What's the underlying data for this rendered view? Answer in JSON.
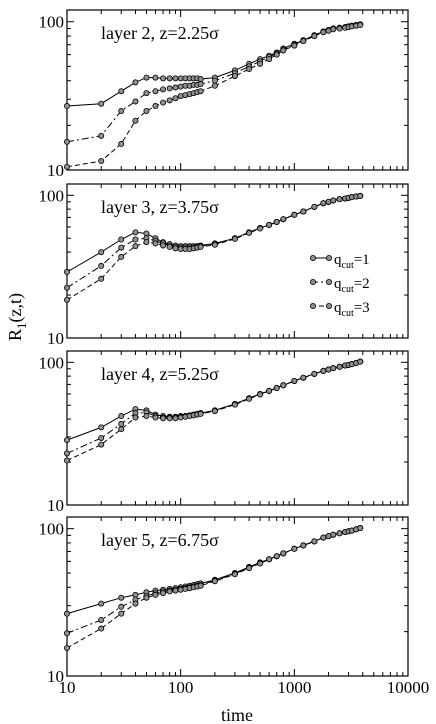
{
  "figure": {
    "ylabel_main": "R",
    "ylabel_sub": "1",
    "ylabel_tail": "(z,t)",
    "xlabel": "time"
  },
  "legend": {
    "entries": [
      {
        "main": "q",
        "sub": "cut",
        "tail": "=1",
        "style": "solid"
      },
      {
        "main": "q",
        "sub": "cut",
        "tail": "=2",
        "style": "dashdot"
      },
      {
        "main": "q",
        "sub": "cut",
        "tail": "=3",
        "style": "dashed"
      }
    ]
  },
  "chart_data": [
    {
      "type": "line",
      "title": "layer 2, z=2.25σ",
      "xscale": "log",
      "yscale": "log",
      "xlim": [
        10,
        10000
      ],
      "ylim": [
        10,
        120
      ],
      "x_ticks": [
        "10",
        "100",
        "1000",
        "10000"
      ],
      "y_ticks": [
        "10",
        "100"
      ],
      "series": [
        {
          "name": "qcut=1",
          "line": "solid",
          "x": [
            10,
            20,
            30,
            40,
            50,
            60,
            70,
            80,
            90,
            100,
            110,
            120,
            130,
            140,
            150,
            200,
            300,
            400,
            500,
            600,
            700,
            800,
            1000,
            1200,
            1500,
            1800,
            2000,
            2200,
            2500,
            2800,
            3000,
            3200,
            3500,
            3800
          ],
          "y": [
            27,
            28,
            34,
            39,
            42,
            42,
            41.5,
            41.5,
            41.5,
            41.5,
            41.5,
            41.5,
            41.5,
            41.5,
            41,
            42,
            47,
            52,
            56,
            59,
            62,
            66,
            71,
            75,
            81,
            86,
            88,
            90,
            91,
            92,
            93,
            94,
            95,
            96
          ]
        },
        {
          "name": "qcut=2",
          "line": "dashdot",
          "x": [
            10,
            20,
            30,
            40,
            50,
            60,
            70,
            80,
            90,
            100,
            110,
            120,
            130,
            140,
            150,
            200,
            300,
            400,
            500,
            600,
            700,
            800,
            1000,
            1200,
            1500,
            1800,
            2000,
            2200,
            2500,
            2800,
            3000,
            3200,
            3500,
            3800
          ],
          "y": [
            15.5,
            17,
            25,
            29,
            33,
            34,
            35,
            35.5,
            36,
            36.5,
            37,
            37,
            37.5,
            37.5,
            38,
            40,
            45,
            50,
            54,
            58,
            61,
            65,
            70,
            75,
            81,
            86,
            88,
            90,
            91,
            92,
            93,
            94,
            95,
            96
          ]
        },
        {
          "name": "qcut=3",
          "line": "dashed",
          "x": [
            10,
            20,
            30,
            40,
            50,
            60,
            70,
            80,
            90,
            100,
            110,
            120,
            130,
            140,
            150,
            200,
            300,
            400,
            500,
            600,
            700,
            800,
            1000,
            1200,
            1500,
            1800,
            2000,
            2200,
            2500,
            2800,
            3000,
            3200,
            3500,
            3800
          ],
          "y": [
            10.5,
            11.5,
            15,
            21.5,
            25,
            27,
            28.5,
            29.5,
            30.5,
            31.5,
            32,
            32.5,
            33,
            33.5,
            34,
            37,
            43,
            48,
            52,
            56,
            60,
            64,
            69,
            74,
            80,
            85,
            87,
            89,
            90,
            91,
            92,
            93,
            94,
            95
          ]
        }
      ]
    },
    {
      "type": "line",
      "title": "layer 3, z=3.75σ",
      "xscale": "log",
      "yscale": "log",
      "xlim": [
        10,
        10000
      ],
      "ylim": [
        10,
        120
      ],
      "x_ticks": [
        "10",
        "100",
        "1000",
        "10000"
      ],
      "y_ticks": [
        "10",
        "100"
      ],
      "series": [
        {
          "name": "qcut=1",
          "line": "solid",
          "x": [
            10,
            20,
            30,
            40,
            50,
            60,
            70,
            80,
            90,
            100,
            110,
            120,
            130,
            140,
            150,
            200,
            300,
            400,
            500,
            600,
            700,
            800,
            1000,
            1200,
            1500,
            1800,
            2000,
            2200,
            2500,
            2800,
            3000,
            3200,
            3500,
            3800
          ],
          "y": [
            29,
            40,
            49,
            55,
            54,
            50,
            47,
            45.5,
            44.5,
            44,
            44,
            44,
            44,
            44,
            44.5,
            46,
            50,
            55,
            59,
            62,
            65,
            68,
            73,
            77,
            83,
            88,
            90,
            92,
            94,
            95,
            96,
            97,
            98,
            99
          ]
        },
        {
          "name": "qcut=2",
          "line": "dashdot",
          "x": [
            10,
            20,
            30,
            40,
            50,
            60,
            70,
            80,
            90,
            100,
            110,
            120,
            130,
            140,
            150,
            200,
            300,
            400,
            500,
            600,
            700,
            800,
            1000,
            1200,
            1500,
            1800,
            2000,
            2200,
            2500,
            2800,
            3000,
            3200,
            3500,
            3800
          ],
          "y": [
            22.5,
            32,
            43,
            49,
            50,
            48,
            46,
            44.5,
            43.5,
            43,
            43,
            43,
            43,
            43.5,
            44,
            45.5,
            50,
            55,
            59,
            62,
            65,
            68,
            73,
            77,
            83,
            88,
            90,
            92,
            94,
            95,
            96,
            97,
            98,
            99
          ]
        },
        {
          "name": "qcut=3",
          "line": "dashed",
          "x": [
            10,
            20,
            30,
            40,
            50,
            60,
            70,
            80,
            90,
            100,
            110,
            120,
            130,
            140,
            150,
            200,
            300,
            400,
            500,
            600,
            700,
            800,
            1000,
            1200,
            1500,
            1800,
            2000,
            2200,
            2500,
            2800,
            3000,
            3200,
            3500,
            3800
          ],
          "y": [
            18.5,
            26,
            37,
            44,
            47,
            46,
            44.5,
            43.5,
            42.5,
            42,
            42,
            42,
            42.5,
            43,
            43.5,
            45,
            49.5,
            54.5,
            58.5,
            62,
            65,
            68,
            73,
            77,
            83,
            88,
            90,
            92,
            94,
            95,
            96,
            97,
            98,
            99
          ]
        }
      ]
    },
    {
      "type": "line",
      "title": "layer 4, z=5.25σ",
      "xscale": "log",
      "yscale": "log",
      "xlim": [
        10,
        10000
      ],
      "ylim": [
        10,
        120
      ],
      "x_ticks": [
        "10",
        "100",
        "1000",
        "10000"
      ],
      "y_ticks": [
        "10",
        "100"
      ],
      "series": [
        {
          "name": "qcut=1",
          "line": "solid",
          "x": [
            10,
            20,
            30,
            40,
            50,
            60,
            70,
            80,
            90,
            100,
            110,
            120,
            130,
            140,
            150,
            200,
            300,
            400,
            500,
            600,
            700,
            800,
            1000,
            1200,
            1500,
            1800,
            2000,
            2200,
            2500,
            2800,
            3000,
            3200,
            3500,
            3800
          ],
          "y": [
            28.5,
            35,
            42,
            47,
            46,
            43,
            42,
            41.5,
            41.5,
            42,
            42,
            42.5,
            43,
            43.5,
            44,
            46,
            51,
            56,
            60,
            63,
            66,
            69,
            74,
            78,
            83,
            87,
            89,
            91,
            93,
            95,
            96,
            97,
            99,
            101
          ]
        },
        {
          "name": "qcut=2",
          "line": "dashdot",
          "x": [
            10,
            20,
            30,
            40,
            50,
            60,
            70,
            80,
            90,
            100,
            110,
            120,
            130,
            140,
            150,
            200,
            300,
            400,
            500,
            600,
            700,
            800,
            1000,
            1200,
            1500,
            1800,
            2000,
            2200,
            2500,
            2800,
            3000,
            3200,
            3500,
            3800
          ],
          "y": [
            23,
            29.5,
            37,
            44,
            44.5,
            42,
            41,
            41,
            41,
            41.5,
            42,
            42.5,
            43,
            43.5,
            44,
            46,
            51,
            56,
            60,
            63,
            66,
            69,
            74,
            78,
            83,
            87,
            89,
            91,
            93,
            95,
            96,
            97,
            99,
            101
          ]
        },
        {
          "name": "qcut=3",
          "line": "dashed",
          "x": [
            10,
            20,
            30,
            40,
            50,
            60,
            70,
            80,
            90,
            100,
            110,
            120,
            130,
            140,
            150,
            200,
            300,
            400,
            500,
            600,
            700,
            800,
            1000,
            1200,
            1500,
            1800,
            2000,
            2200,
            2500,
            2800,
            3000,
            3200,
            3500,
            3800
          ],
          "y": [
            20.5,
            26.5,
            34,
            41,
            42,
            41,
            40.5,
            40.5,
            40.5,
            41,
            41.5,
            42,
            42.5,
            43,
            43.5,
            45.5,
            50.5,
            55.5,
            59.5,
            63,
            66,
            69,
            74,
            78,
            83,
            87,
            89,
            91,
            93,
            95,
            96,
            97,
            99,
            101
          ]
        }
      ]
    },
    {
      "type": "line",
      "title": "layer 5, z=6.75σ",
      "xscale": "log",
      "yscale": "log",
      "xlim": [
        10,
        10000
      ],
      "ylim": [
        10,
        120
      ],
      "x_ticks": [
        "10",
        "100",
        "1000",
        "10000"
      ],
      "y_ticks": [
        "10",
        "100"
      ],
      "series": [
        {
          "name": "qcut=1",
          "line": "solid",
          "x": [
            10,
            20,
            30,
            40,
            50,
            60,
            70,
            80,
            90,
            100,
            110,
            120,
            130,
            140,
            150,
            200,
            300,
            400,
            500,
            600,
            700,
            800,
            1000,
            1200,
            1500,
            1800,
            2000,
            2200,
            2500,
            2800,
            3000,
            3200,
            3500,
            3800
          ],
          "y": [
            26.5,
            31,
            34,
            35.5,
            37,
            38,
            38.5,
            39,
            39.5,
            40,
            40.5,
            41,
            41.5,
            42,
            42.5,
            45,
            50,
            55,
            59,
            62,
            65,
            68,
            73,
            77,
            82,
            87,
            89,
            91,
            93,
            95,
            96,
            97,
            99,
            101
          ]
        },
        {
          "name": "qcut=2",
          "line": "dashdot",
          "x": [
            10,
            20,
            30,
            40,
            50,
            60,
            70,
            80,
            90,
            100,
            110,
            120,
            130,
            140,
            150,
            200,
            300,
            400,
            500,
            600,
            700,
            800,
            1000,
            1200,
            1500,
            1800,
            2000,
            2200,
            2500,
            2800,
            3000,
            3200,
            3500,
            3800
          ],
          "y": [
            19.5,
            24,
            29.5,
            33,
            35,
            36.5,
            37.5,
            38,
            38.5,
            39,
            39.5,
            40,
            40.5,
            41,
            41.5,
            44.5,
            49.5,
            54.5,
            58.5,
            62,
            65,
            68,
            73,
            77,
            82,
            87,
            89,
            91,
            93,
            95,
            96,
            97,
            99,
            101
          ]
        },
        {
          "name": "qcut=3",
          "line": "dashed",
          "x": [
            10,
            20,
            30,
            40,
            50,
            60,
            70,
            80,
            90,
            100,
            110,
            120,
            130,
            140,
            150,
            200,
            300,
            400,
            500,
            600,
            700,
            800,
            1000,
            1200,
            1500,
            1800,
            2000,
            2200,
            2500,
            2800,
            3000,
            3200,
            3500,
            3800
          ],
          "y": [
            15.5,
            21,
            26.5,
            31,
            34,
            35.5,
            36.5,
            37.5,
            38,
            38.5,
            39,
            39.5,
            40,
            40.5,
            41,
            44,
            49,
            54,
            58,
            62,
            65,
            68,
            73,
            77,
            82,
            87,
            89,
            91,
            93,
            95,
            96,
            97,
            99,
            101
          ]
        }
      ]
    }
  ]
}
